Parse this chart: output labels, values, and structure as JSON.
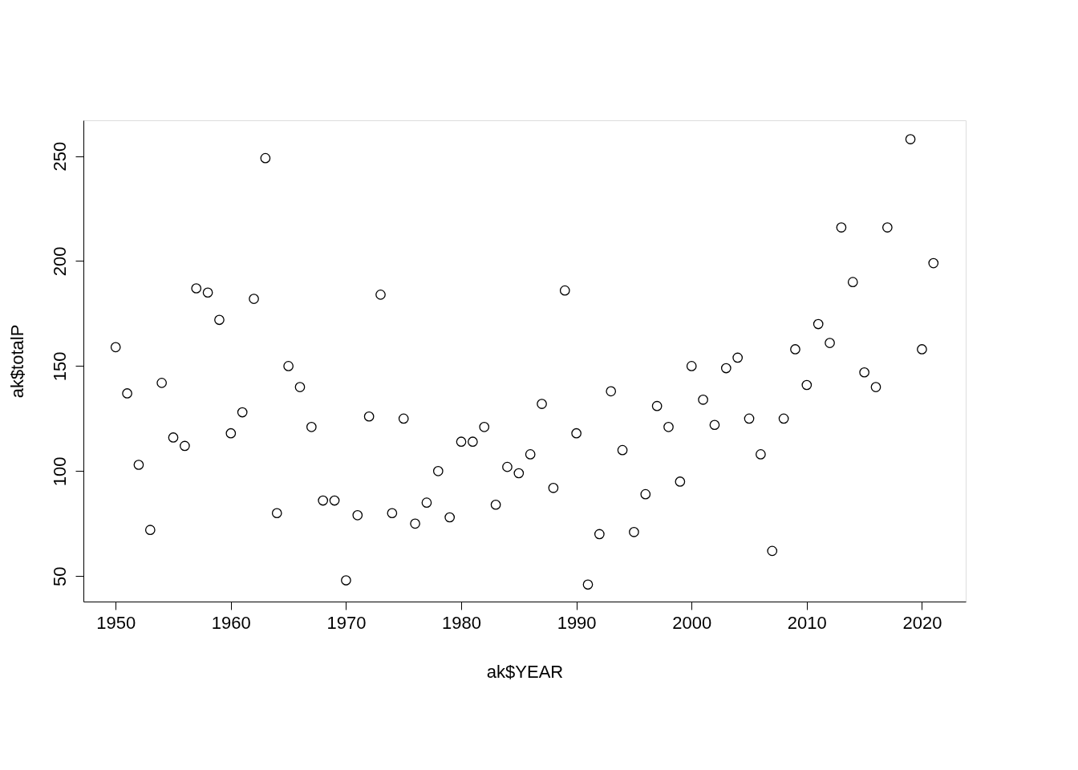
{
  "chart_data": {
    "type": "scatter",
    "xlabel": "ak$YEAR",
    "ylabel": "ak$totalP",
    "x": [
      1950,
      1951,
      1952,
      1953,
      1954,
      1955,
      1956,
      1957,
      1958,
      1959,
      1960,
      1961,
      1962,
      1963,
      1964,
      1965,
      1966,
      1967,
      1968,
      1969,
      1970,
      1971,
      1972,
      1973,
      1974,
      1975,
      1976,
      1977,
      1978,
      1979,
      1980,
      1981,
      1982,
      1983,
      1984,
      1985,
      1986,
      1987,
      1988,
      1989,
      1990,
      1991,
      1992,
      1993,
      1994,
      1995,
      1996,
      1997,
      1998,
      1999,
      2000,
      2001,
      2002,
      2003,
      2004,
      2005,
      2006,
      2007,
      2008,
      2009,
      2010,
      2011,
      2012,
      2013,
      2014,
      2015,
      2016,
      2017,
      2019,
      2020,
      2021
    ],
    "series": [
      {
        "color": "#000000",
        "values": [
          159,
          137,
          103,
          72,
          142,
          116,
          112,
          187,
          185,
          172,
          118,
          128,
          182,
          249,
          80,
          150,
          140,
          121,
          86,
          86,
          48,
          79,
          126,
          184,
          80,
          125,
          75,
          85,
          100,
          78,
          114,
          114,
          121,
          84,
          102,
          99,
          108,
          132,
          92,
          186,
          118,
          46,
          70,
          138,
          110,
          71,
          89,
          131,
          121,
          95,
          150,
          134,
          122,
          149,
          154,
          125,
          108,
          62,
          125,
          158,
          141,
          170,
          161,
          216,
          190,
          147,
          140,
          216,
          258,
          158,
          199
        ]
      }
    ],
    "xlim": [
      1947.2,
      2023.8
    ],
    "ylim": [
      37.9,
      267
    ],
    "xticks": [
      1950,
      1960,
      1970,
      1980,
      1990,
      2000,
      2010,
      2020
    ],
    "yticks": [
      50,
      100,
      150,
      200,
      250
    ],
    "grid": false,
    "marker": "circle"
  }
}
